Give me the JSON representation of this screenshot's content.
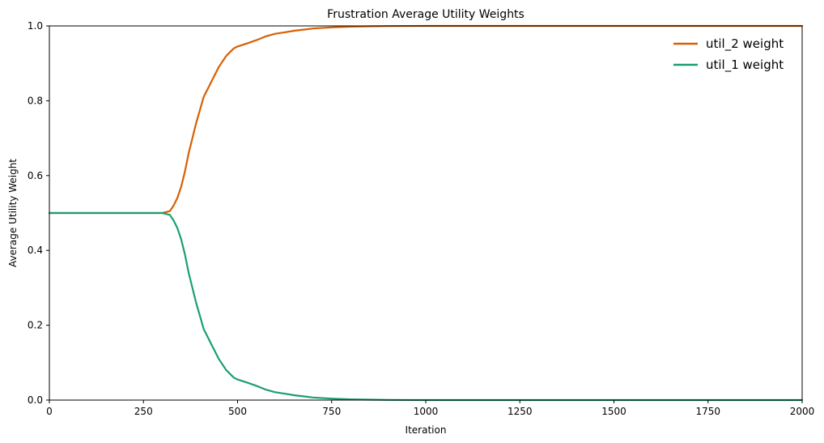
{
  "chart_data": {
    "type": "line",
    "title": "Frustration Average Utility Weights",
    "xlabel": "Iteration",
    "ylabel": "Average Utility Weight",
    "xlim": [
      0,
      2000
    ],
    "ylim": [
      0,
      1.0
    ],
    "xticks": [
      0,
      250,
      500,
      750,
      1000,
      1250,
      1500,
      1750,
      2000
    ],
    "xtick_labels": [
      "0",
      "250",
      "500",
      "750",
      "1000",
      "1250",
      "1500",
      "1750",
      "2000"
    ],
    "yticks": [
      0,
      0.2,
      0.4,
      0.6,
      0.8,
      1.0
    ],
    "ytick_labels": [
      "0.0",
      "0.2",
      "0.4",
      "0.6",
      "0.8",
      "1.0"
    ],
    "grid": false,
    "legend_position": "top-right",
    "x": [
      0,
      100,
      200,
      300,
      320,
      330,
      340,
      350,
      360,
      370,
      380,
      390,
      400,
      410,
      420,
      430,
      440,
      450,
      460,
      470,
      480,
      490,
      500,
      525,
      550,
      575,
      600,
      625,
      650,
      675,
      700,
      750,
      800,
      850,
      900,
      1000,
      1250,
      1500,
      1750,
      2000
    ],
    "series": [
      {
        "name": "util_2 weight",
        "color": "#d95f02",
        "values": [
          0.5,
          0.5,
          0.5,
          0.5,
          0.505,
          0.52,
          0.54,
          0.57,
          0.61,
          0.66,
          0.7,
          0.74,
          0.775,
          0.81,
          0.83,
          0.85,
          0.87,
          0.89,
          0.905,
          0.92,
          0.93,
          0.94,
          0.945,
          0.953,
          0.962,
          0.972,
          0.979,
          0.983,
          0.987,
          0.99,
          0.993,
          0.996,
          0.998,
          0.999,
          0.9995,
          1.0,
          1.0,
          1.0,
          1.0,
          1.0
        ]
      },
      {
        "name": "util_1 weight",
        "color": "#1b9e77",
        "values": [
          0.5,
          0.5,
          0.5,
          0.5,
          0.495,
          0.48,
          0.46,
          0.43,
          0.39,
          0.34,
          0.3,
          0.26,
          0.225,
          0.19,
          0.17,
          0.15,
          0.13,
          0.11,
          0.095,
          0.08,
          0.07,
          0.06,
          0.055,
          0.047,
          0.038,
          0.028,
          0.021,
          0.017,
          0.013,
          0.01,
          0.007,
          0.004,
          0.002,
          0.001,
          0.0005,
          0.0,
          0.0,
          0.0,
          0.0,
          0.0
        ]
      }
    ]
  }
}
